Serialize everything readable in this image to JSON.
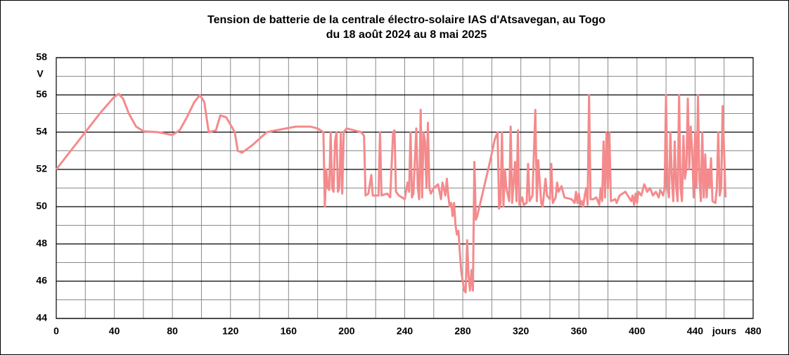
{
  "chart_data": {
    "type": "line",
    "title": "Tension de batterie de la centrale électro-solaire IAS d'Atsavegan, au Togo",
    "subtitle": "du 18 août 2024 au 8 mai 2025",
    "y_label": "V",
    "x_label": "jours",
    "color": "#f48a8c",
    "xlim": [
      0,
      480
    ],
    "xticks": [
      0,
      40,
      80,
      120,
      160,
      200,
      240,
      280,
      320,
      360,
      400,
      440,
      480
    ],
    "xticks_minor": [
      20,
      60,
      100,
      140,
      180,
      220,
      260,
      300,
      340,
      380,
      420,
      460
    ],
    "ylim": [
      44,
      58
    ],
    "yticks": [
      44,
      46,
      48,
      50,
      52,
      54,
      56,
      58
    ],
    "yticks_minor": [
      45,
      47,
      49,
      51,
      53,
      55,
      57
    ],
    "grid": true,
    "x": [
      0,
      10,
      20,
      30,
      40,
      43,
      46,
      50,
      55,
      60,
      70,
      80,
      85,
      90,
      95,
      99,
      102,
      105,
      110,
      113,
      117,
      120,
      123,
      125,
      128,
      135,
      145,
      155,
      165,
      175,
      180,
      184,
      185,
      186,
      187,
      188,
      189,
      190,
      191,
      192,
      193,
      194,
      195,
      196,
      197,
      198,
      200,
      205,
      210,
      212,
      213,
      215,
      217,
      218,
      222,
      223,
      224,
      228,
      230,
      232,
      233,
      234,
      236,
      238,
      240,
      242,
      243,
      244,
      245,
      246,
      248,
      249,
      250,
      251,
      252,
      253,
      254,
      255,
      256,
      257,
      258,
      260,
      263,
      265,
      266,
      267,
      268,
      269,
      270,
      271,
      272,
      273,
      274,
      275,
      276,
      277,
      278,
      279,
      280,
      281,
      282,
      283,
      284,
      285,
      286,
      287,
      288,
      289,
      290,
      293,
      296,
      299,
      302,
      304,
      305,
      306,
      307,
      308,
      309,
      310,
      312,
      313,
      314,
      316,
      317,
      318,
      319,
      321,
      322,
      324,
      325,
      326,
      328,
      330,
      331,
      332,
      334,
      335,
      337,
      338,
      340,
      341,
      342,
      344,
      345,
      346,
      348,
      350,
      355,
      356,
      357,
      358,
      359,
      360,
      361,
      362,
      363,
      364,
      365,
      366,
      367,
      368,
      370,
      372,
      374,
      375,
      376,
      377,
      378,
      379,
      380,
      381,
      382,
      385,
      386,
      388,
      392,
      396,
      397,
      398,
      399,
      400,
      401,
      403,
      405,
      407,
      409,
      411,
      413,
      415,
      416,
      418,
      419,
      420,
      421,
      422,
      423,
      424,
      425,
      426,
      427,
      428,
      429,
      430,
      431,
      432,
      433,
      434,
      435,
      436,
      437,
      438,
      439,
      440,
      441,
      442,
      443,
      444,
      445,
      446,
      447,
      448,
      449,
      450,
      451,
      452,
      454,
      455,
      456,
      457,
      458,
      459,
      461
    ],
    "values": [
      52,
      53,
      54,
      55,
      55.9,
      56.05,
      55.8,
      55,
      54.3,
      54.05,
      54,
      53.85,
      54.1,
      54.8,
      55.6,
      56,
      55.6,
      54,
      54.1,
      54.9,
      54.8,
      54.4,
      54,
      53,
      52.9,
      53.3,
      54,
      54.15,
      54.3,
      54.3,
      54.2,
      54,
      50,
      52,
      51,
      50.9,
      54,
      51,
      50.8,
      53.5,
      54,
      50.8,
      51,
      54,
      50.7,
      54,
      54.2,
      54.1,
      54,
      53.8,
      50.6,
      50.7,
      51.7,
      50.6,
      50.6,
      54,
      50.6,
      50.7,
      50.5,
      54,
      54.1,
      50.8,
      50.6,
      50.5,
      50.4,
      51.3,
      50.8,
      54,
      50.5,
      50.7,
      54.2,
      51,
      50.4,
      55.2,
      50.5,
      54,
      53.5,
      51,
      54.5,
      51,
      50.7,
      51,
      51.2,
      50.4,
      51.3,
      51,
      50.6,
      51.5,
      50.6,
      50,
      50.2,
      49.5,
      50.2,
      49,
      48.5,
      48.7,
      47.5,
      46.5,
      46,
      45.5,
      45.4,
      48.2,
      46.3,
      45.5,
      46.6,
      45.5,
      52.4,
      49.3,
      49.5,
      50.5,
      51.5,
      52.5,
      53.6,
      54,
      49.9,
      50.2,
      54,
      50,
      52,
      51,
      50.3,
      54.3,
      50.2,
      52.4,
      50.3,
      54.1,
      50.1,
      50.5,
      50.1,
      50.2,
      52.3,
      50.3,
      50.6,
      55.2,
      50.3,
      52.5,
      50.2,
      50,
      51.5,
      50.6,
      50.4,
      52.3,
      50.2,
      50.5,
      51.3,
      50.8,
      51.1,
      50.5,
      50.4,
      50.3,
      50.2,
      50.8,
      50.2,
      50.7,
      50.1,
      50.3,
      50,
      50.6,
      51,
      50.1,
      56,
      50.4,
      50.4,
      50.5,
      50.1,
      51,
      50.3,
      53.5,
      50.5,
      54,
      51,
      54,
      50.3,
      50.4,
      50.2,
      50.6,
      50.8,
      50.3,
      50.6,
      50.1,
      50.7,
      50.2,
      50.8,
      50.6,
      51.2,
      50.8,
      51,
      50.6,
      50.8,
      50.5,
      50.9,
      50.6,
      51,
      56,
      51,
      50.5,
      54,
      51.5,
      50.3,
      53.5,
      51,
      50.3,
      56,
      51,
      50.3,
      53.8,
      51.5,
      52,
      55.8,
      52,
      54.3,
      53,
      50.5,
      54,
      51,
      56,
      51.4,
      50.3,
      54,
      50.5,
      52.8,
      50.5,
      52,
      51,
      52.6,
      50.3,
      50.2,
      51,
      54,
      50.6,
      51,
      55.4,
      50.5
    ]
  }
}
